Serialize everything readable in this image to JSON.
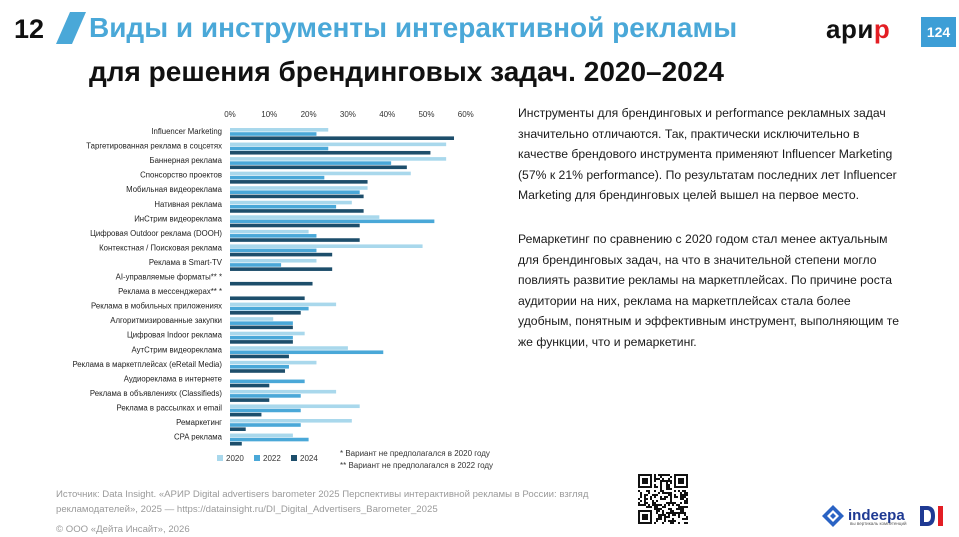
{
  "header": {
    "section_number": "12",
    "title_line1": "Виды и инструменты интерактивной рекламы",
    "title_line2": "для решения брендинговых задач. 2020–2024",
    "logo_left": "ари",
    "logo_accent": "р",
    "page_number": "124"
  },
  "colors": {
    "2020": "#a9d8ec",
    "2022": "#4aa8d8",
    "2024": "#1d4e6b",
    "accent": "#4aa8d8"
  },
  "chart_data": {
    "type": "bar",
    "orientation": "horizontal",
    "categories": [
      "Influencer Marketing",
      "Таргетированная реклама в соцсетях",
      "Баннерная реклама",
      "Спонсорство проектов",
      "Мобильная видеореклама",
      "Нативная реклама",
      "ИнСтрим видеореклама",
      "Цифровая Outdoor реклама (DOOH)",
      "Контекстная / Поисковая реклама",
      "Реклама в Smart-TV",
      "AI-управляемые форматы** *",
      "Реклама в мессенджерах** *",
      "Реклама в мобильных приложениях",
      "Алгоритмизированные закупки",
      "Цифровая Indoor реклама",
      "АутСтрим видеореклама",
      "Реклама в маркетплейсах (eRetail Media)",
      "Аудиореклама в интернете",
      "Реклама в объявлениях (Classifieds)",
      "Реклама в рассылках и email",
      "Ремаркетинг",
      "CPA реклама"
    ],
    "series": [
      {
        "name": "2020",
        "values": [
          25,
          55,
          55,
          46,
          35,
          31,
          38,
          20,
          49,
          22,
          null,
          null,
          27,
          11,
          19,
          30,
          22,
          0,
          27,
          33,
          31,
          16
        ]
      },
      {
        "name": "2022",
        "values": [
          22,
          25,
          41,
          24,
          33,
          27,
          52,
          22,
          22,
          13,
          null,
          null,
          20,
          16,
          16,
          39,
          15,
          19,
          18,
          18,
          18,
          20
        ]
      },
      {
        "name": "2024",
        "values": [
          57,
          51,
          45,
          35,
          34,
          34,
          33,
          33,
          26,
          26,
          21,
          19,
          18,
          16,
          16,
          15,
          14,
          10,
          10,
          8,
          4,
          3
        ]
      }
    ],
    "xlim": [
      0,
      60
    ],
    "xticks": [
      "0%",
      "10%",
      "20%",
      "30%",
      "40%",
      "50%",
      "60%"
    ],
    "legend_position": "bottom-left",
    "footnotes": [
      "* Вариант не предполагался в 2020 году",
      "** Вариант не предполагался в 2022 году"
    ]
  },
  "text": {
    "p1": "Инструменты для брендинговых и performance рекламных задач значительно отличаются. Так, практически исключительно в качестве брендового инструмента применяют Influencer Marketing (57% к 21% performance). По результатам последних лет Influencer Marketing для брендинговых целей вышел на первое место.",
    "p2": "Ремаркетинг по сравнению с 2020 годом стал менее актуальным для брендинговых задач, на что в значительной степени могло повлиять развитие рекламы на маркетплейсах. По причине роста аудитории на них, реклама на маркетплейсах стала более удобным, понятным и эффективным инструмент, выполняющим те же функции, что и ремаркетинг."
  },
  "footer": {
    "source": "Источник: Data Insight. «АРИР Digital advertisers barometer 2025 Перспективы интерактивной рекламы в России: взгляд рекламодателей», 2025 — https://datainsight.ru/DI_Digital_Advertisers_Barometer_2025",
    "copyright": "© ООО «Дейта Инсайт», 2026",
    "indeepa_word": "indeepa",
    "indeepa_tagline": "вы вертикаль компетенций",
    "di_letters": "DI"
  }
}
